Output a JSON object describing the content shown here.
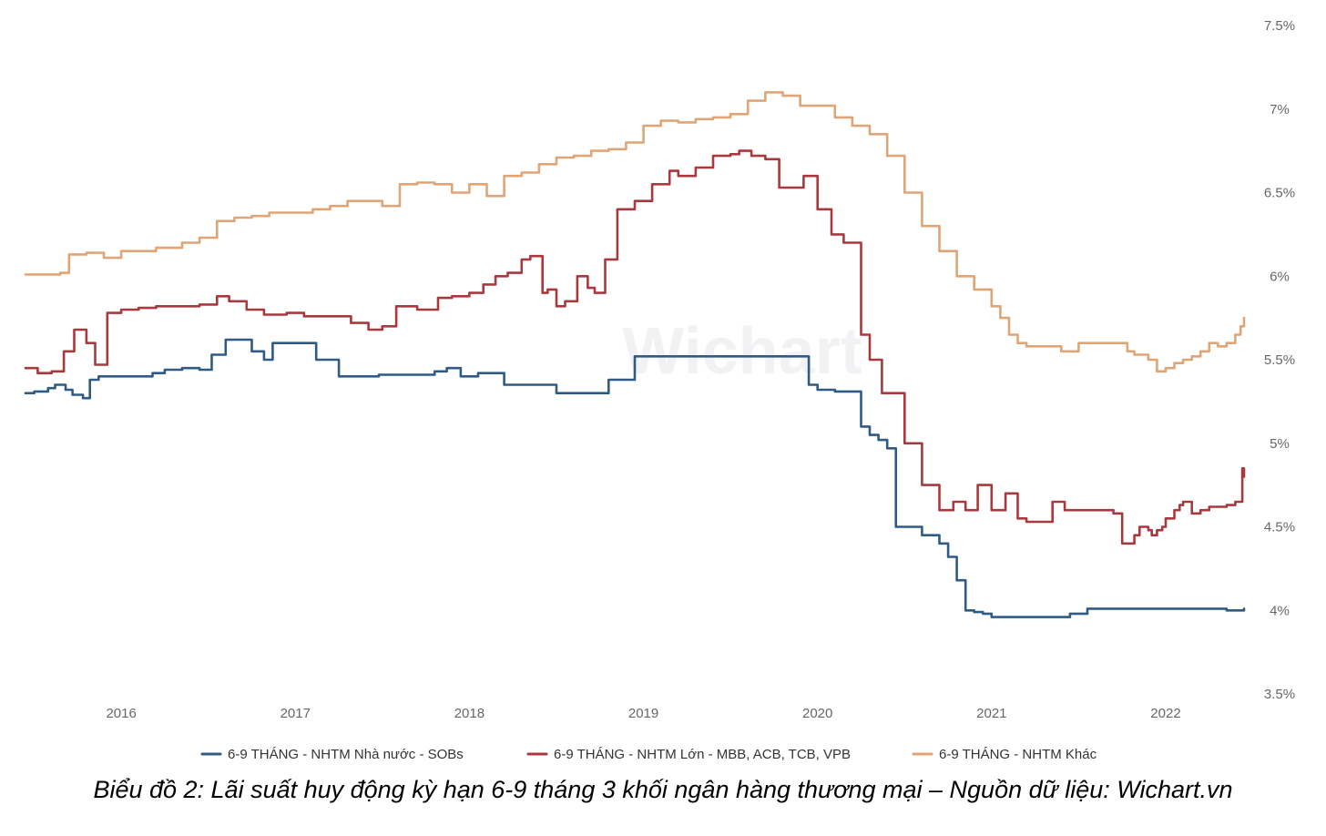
{
  "watermark": "Wichart",
  "caption": "Biểu đồ 2: Lãi suất huy động kỳ hạn 6-9 tháng 3 khối ngân hàng thương mại – Nguồn dữ liệu: Wichart.vn",
  "chart_data": {
    "type": "line",
    "title": "",
    "xlabel": "",
    "ylabel": "",
    "xlim": [
      2015.45,
      2022.45
    ],
    "ylim": [
      3.5,
      7.5
    ],
    "grid": false,
    "legend_position": "bottom",
    "y_axis_side": "right",
    "x_ticks": [
      2016,
      2017,
      2018,
      2019,
      2020,
      2021,
      2022
    ],
    "x_tick_labels": [
      "2016",
      "2017",
      "2018",
      "2019",
      "2020",
      "2021",
      "2022"
    ],
    "y_ticks": [
      3.5,
      4,
      4.5,
      5,
      5.5,
      6,
      6.5,
      7,
      7.5
    ],
    "y_tick_labels": [
      "3.5%",
      "4%",
      "4.5%",
      "5%",
      "5.5%",
      "6%",
      "6.5%",
      "7%",
      "7.5%"
    ],
    "series": [
      {
        "name": "6-9 THÁNG - NHTM Nhà nước - SOBs",
        "color": "#2f5b84",
        "x": [
          2015.45,
          2015.5,
          2015.58,
          2015.62,
          2015.68,
          2015.72,
          2015.78,
          2015.82,
          2015.87,
          2015.95,
          2016.03,
          2016.12,
          2016.18,
          2016.25,
          2016.35,
          2016.45,
          2016.52,
          2016.6,
          2016.75,
          2016.82,
          2016.87,
          2017.05,
          2017.12,
          2017.25,
          2017.4,
          2017.48,
          2017.55,
          2017.72,
          2017.8,
          2017.87,
          2017.95,
          2018.05,
          2018.12,
          2018.2,
          2018.3,
          2018.4,
          2018.5,
          2018.6,
          2018.7,
          2018.8,
          2018.85,
          2018.95,
          2019.1,
          2019.3,
          2019.5,
          2019.7,
          2019.9,
          2019.95,
          2020.0,
          2020.1,
          2020.2,
          2020.25,
          2020.3,
          2020.35,
          2020.4,
          2020.45,
          2020.5,
          2020.6,
          2020.7,
          2020.75,
          2020.8,
          2020.85,
          2020.9,
          2020.95,
          2021.0,
          2021.08,
          2021.15,
          2021.25,
          2021.35,
          2021.45,
          2021.55,
          2021.7,
          2021.85,
          2022.0,
          2022.1,
          2022.15,
          2022.2,
          2022.3,
          2022.35,
          2022.45
        ],
        "values": [
          5.3,
          5.31,
          5.33,
          5.35,
          5.32,
          5.29,
          5.27,
          5.38,
          5.4,
          5.4,
          5.4,
          5.4,
          5.42,
          5.44,
          5.45,
          5.44,
          5.53,
          5.62,
          5.55,
          5.5,
          5.6,
          5.6,
          5.5,
          5.4,
          5.4,
          5.41,
          5.41,
          5.41,
          5.43,
          5.45,
          5.4,
          5.42,
          5.42,
          5.35,
          5.35,
          5.35,
          5.3,
          5.3,
          5.3,
          5.38,
          5.38,
          5.52,
          5.52,
          5.52,
          5.52,
          5.52,
          5.52,
          5.35,
          5.32,
          5.31,
          5.31,
          5.1,
          5.05,
          5.02,
          4.97,
          4.5,
          4.5,
          4.45,
          4.4,
          4.32,
          4.18,
          4.0,
          3.99,
          3.98,
          3.96,
          3.96,
          3.96,
          3.96,
          3.96,
          3.98,
          4.01,
          4.01,
          4.01,
          4.01,
          4.01,
          4.01,
          4.01,
          4.01,
          4.0,
          4.01
        ]
      },
      {
        "name": "6-9 THÁNG - NHTM Lớn - MBB, ACB, TCB, VPB",
        "color": "#a83a3f",
        "x": [
          2015.45,
          2015.52,
          2015.6,
          2015.67,
          2015.73,
          2015.8,
          2015.85,
          2015.92,
          2016.0,
          2016.1,
          2016.2,
          2016.3,
          2016.45,
          2016.55,
          2016.62,
          2016.72,
          2016.82,
          2016.95,
          2017.05,
          2017.15,
          2017.32,
          2017.42,
          2017.5,
          2017.58,
          2017.7,
          2017.82,
          2017.9,
          2018.0,
          2018.08,
          2018.15,
          2018.22,
          2018.3,
          2018.35,
          2018.42,
          2018.45,
          2018.5,
          2018.55,
          2018.62,
          2018.68,
          2018.72,
          2018.78,
          2018.85,
          2018.95,
          2019.05,
          2019.15,
          2019.2,
          2019.3,
          2019.4,
          2019.5,
          2019.55,
          2019.62,
          2019.7,
          2019.78,
          2019.85,
          2019.92,
          2020.0,
          2020.08,
          2020.15,
          2020.25,
          2020.3,
          2020.37,
          2020.45,
          2020.5,
          2020.6,
          2020.7,
          2020.78,
          2020.85,
          2020.92,
          2021.0,
          2021.08,
          2021.15,
          2021.2,
          2021.28,
          2021.35,
          2021.42,
          2021.5,
          2021.55,
          2021.7,
          2021.75,
          2021.82,
          2021.85,
          2021.9,
          2021.92,
          2021.95,
          2021.98,
          2022.0,
          2022.05,
          2022.08,
          2022.1,
          2022.15,
          2022.2,
          2022.25,
          2022.3,
          2022.35,
          2022.4,
          2022.44,
          2022.45
        ],
        "values": [
          5.45,
          5.42,
          5.43,
          5.55,
          5.68,
          5.6,
          5.47,
          5.78,
          5.8,
          5.81,
          5.82,
          5.82,
          5.83,
          5.88,
          5.85,
          5.8,
          5.77,
          5.78,
          5.76,
          5.76,
          5.72,
          5.68,
          5.7,
          5.82,
          5.8,
          5.87,
          5.88,
          5.9,
          5.95,
          6.0,
          6.02,
          6.1,
          6.12,
          5.9,
          5.92,
          5.82,
          5.85,
          6.0,
          5.93,
          5.9,
          6.1,
          6.4,
          6.45,
          6.55,
          6.63,
          6.6,
          6.65,
          6.72,
          6.73,
          6.75,
          6.72,
          6.7,
          6.53,
          6.53,
          6.6,
          6.4,
          6.25,
          6.2,
          5.65,
          5.5,
          5.3,
          5.3,
          5.0,
          4.75,
          4.6,
          4.65,
          4.6,
          4.75,
          4.6,
          4.7,
          4.55,
          4.53,
          4.53,
          4.65,
          4.6,
          4.6,
          4.6,
          4.58,
          4.4,
          4.45,
          4.5,
          4.48,
          4.45,
          4.48,
          4.5,
          4.55,
          4.6,
          4.63,
          4.65,
          4.58,
          4.6,
          4.62,
          4.62,
          4.63,
          4.65,
          4.85,
          4.8
        ]
      },
      {
        "name": "6-9 THÁNG - NHTM Khác",
        "color": "#e0a577",
        "x": [
          2015.45,
          2015.55,
          2015.65,
          2015.7,
          2015.8,
          2015.9,
          2016.0,
          2016.1,
          2016.2,
          2016.25,
          2016.35,
          2016.45,
          2016.55,
          2016.65,
          2016.75,
          2016.85,
          2017.0,
          2017.1,
          2017.2,
          2017.3,
          2017.42,
          2017.5,
          2017.6,
          2017.7,
          2017.8,
          2017.9,
          2018.0,
          2018.1,
          2018.2,
          2018.3,
          2018.4,
          2018.5,
          2018.6,
          2018.7,
          2018.8,
          2018.9,
          2019.0,
          2019.1,
          2019.2,
          2019.3,
          2019.4,
          2019.5,
          2019.6,
          2019.7,
          2019.8,
          2019.9,
          2020.0,
          2020.1,
          2020.2,
          2020.3,
          2020.4,
          2020.5,
          2020.6,
          2020.7,
          2020.8,
          2020.9,
          2021.0,
          2021.05,
          2021.1,
          2021.15,
          2021.2,
          2021.3,
          2021.4,
          2021.5,
          2021.6,
          2021.7,
          2021.78,
          2021.82,
          2021.87,
          2021.9,
          2021.95,
          2022.0,
          2022.05,
          2022.1,
          2022.15,
          2022.2,
          2022.25,
          2022.3,
          2022.35,
          2022.4,
          2022.43,
          2022.45
        ],
        "values": [
          6.01,
          6.01,
          6.02,
          6.13,
          6.14,
          6.11,
          6.15,
          6.15,
          6.17,
          6.17,
          6.2,
          6.23,
          6.33,
          6.35,
          6.36,
          6.38,
          6.38,
          6.4,
          6.42,
          6.45,
          6.45,
          6.42,
          6.55,
          6.56,
          6.55,
          6.5,
          6.55,
          6.48,
          6.6,
          6.62,
          6.67,
          6.71,
          6.72,
          6.75,
          6.76,
          6.8,
          6.9,
          6.93,
          6.92,
          6.94,
          6.95,
          6.97,
          7.05,
          7.1,
          7.08,
          7.02,
          7.02,
          6.95,
          6.9,
          6.85,
          6.72,
          6.5,
          6.3,
          6.15,
          6.0,
          5.92,
          5.82,
          5.75,
          5.65,
          5.6,
          5.58,
          5.58,
          5.55,
          5.6,
          5.6,
          5.6,
          5.55,
          5.53,
          5.53,
          5.5,
          5.43,
          5.45,
          5.48,
          5.5,
          5.52,
          5.55,
          5.6,
          5.58,
          5.6,
          5.65,
          5.7,
          5.75
        ]
      }
    ]
  }
}
